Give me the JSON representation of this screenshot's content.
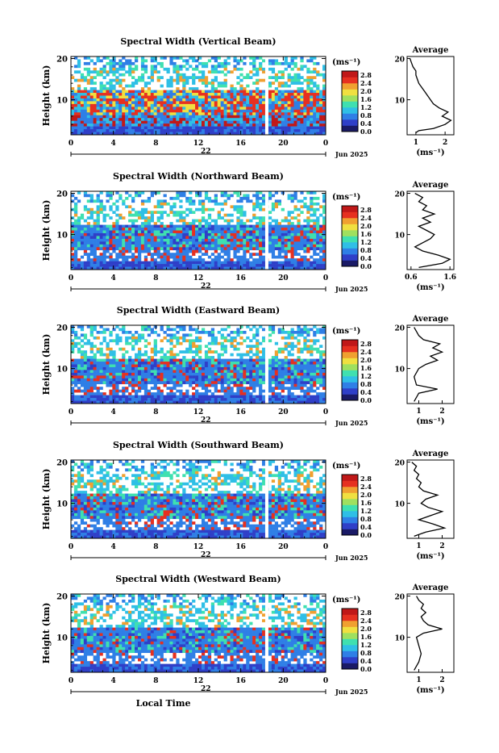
{
  "colors": {
    "stops": [
      "#1a1a66",
      "#2f3fc8",
      "#2f7fe6",
      "#2fbfe6",
      "#3fe0b0",
      "#9fe05f",
      "#f0e040",
      "#f0a030",
      "#e63020",
      "#c01818"
    ],
    "white": "#ffffff"
  },
  "x_axis": {
    "ticks": [
      "0",
      "4",
      "8",
      "12",
      "16",
      "20",
      "0"
    ],
    "date_label": "22",
    "date_suffix": "Jun 2025",
    "xlabel": "Local Time"
  },
  "y_axis": {
    "ylabel": "Height (km)",
    "ticks": [
      "20",
      "10"
    ]
  },
  "colorbar": {
    "unit": "(ms⁻¹)",
    "ticks": [
      "2.8",
      "2.4",
      "2.0",
      "1.6",
      "1.2",
      "0.8",
      "0.4",
      "0.0"
    ]
  },
  "avg_panel": {
    "title": "Average",
    "xlabel": "(ms⁻¹)"
  },
  "chart_data": [
    {
      "type": "heatmap",
      "title": "Spectral Width (Vertical Beam)",
      "xlabel": "",
      "ylabel": "Height (km)",
      "xlim": [
        0,
        24
      ],
      "ylim": [
        1.5,
        20.5
      ],
      "zlim": [
        0.0,
        3.0
      ],
      "average_profile": {
        "xticks": [
          "1",
          "2"
        ],
        "xlim": [
          0.7,
          2.3
        ],
        "points": [
          [
            1.0,
            2
          ],
          [
            1.1,
            2.5
          ],
          [
            1.6,
            3
          ],
          [
            2.0,
            4
          ],
          [
            2.2,
            5
          ],
          [
            1.9,
            6
          ],
          [
            2.1,
            7
          ],
          [
            1.8,
            8
          ],
          [
            1.6,
            9
          ],
          [
            1.5,
            10
          ],
          [
            1.4,
            11
          ],
          [
            1.3,
            12
          ],
          [
            1.2,
            13
          ],
          [
            1.1,
            14
          ],
          [
            1.05,
            15
          ],
          [
            1.0,
            16
          ],
          [
            1.0,
            17
          ],
          [
            0.9,
            18
          ],
          [
            0.85,
            19
          ],
          [
            0.8,
            20
          ]
        ]
      }
    },
    {
      "type": "heatmap",
      "title": "Spectral Width (Northward Beam)",
      "xlabel": "",
      "ylabel": "Height (km)",
      "xlim": [
        0,
        24
      ],
      "ylim": [
        1.5,
        20.5
      ],
      "zlim": [
        0.0,
        3.0
      ],
      "average_profile": {
        "xticks": [
          "0.6",
          "1.6"
        ],
        "xlim": [
          0.5,
          1.7
        ],
        "points": [
          [
            0.8,
            2
          ],
          [
            1.4,
            3
          ],
          [
            1.6,
            4
          ],
          [
            1.3,
            5
          ],
          [
            0.9,
            6
          ],
          [
            0.7,
            7
          ],
          [
            0.9,
            8
          ],
          [
            1.1,
            9
          ],
          [
            1.2,
            10
          ],
          [
            1.0,
            11
          ],
          [
            0.8,
            12
          ],
          [
            1.1,
            13
          ],
          [
            0.9,
            14
          ],
          [
            1.2,
            15
          ],
          [
            0.9,
            16
          ],
          [
            1.0,
            17
          ],
          [
            0.8,
            18
          ],
          [
            0.9,
            19
          ],
          [
            0.7,
            20
          ]
        ]
      }
    },
    {
      "type": "heatmap",
      "title": "Spectral Width (Eastward Beam)",
      "xlabel": "",
      "ylabel": "Height (km)",
      "xlim": [
        0,
        24
      ],
      "ylim": [
        1.5,
        20.5
      ],
      "zlim": [
        0.0,
        3.0
      ],
      "average_profile": {
        "xticks": [
          "1",
          "2"
        ],
        "xlim": [
          0.5,
          2.5
        ],
        "points": [
          [
            0.8,
            2
          ],
          [
            0.9,
            3
          ],
          [
            1.0,
            4
          ],
          [
            1.8,
            5
          ],
          [
            0.9,
            6
          ],
          [
            0.8,
            8
          ],
          [
            1.0,
            10
          ],
          [
            1.3,
            11
          ],
          [
            1.8,
            12
          ],
          [
            1.5,
            13
          ],
          [
            2.0,
            14
          ],
          [
            1.6,
            15
          ],
          [
            1.9,
            16
          ],
          [
            1.2,
            17
          ],
          [
            1.0,
            18
          ],
          [
            0.9,
            19
          ],
          [
            0.8,
            20
          ]
        ]
      }
    },
    {
      "type": "heatmap",
      "title": "Spectral Width (Southward Beam)",
      "xlabel": "",
      "ylabel": "Height (km)",
      "xlim": [
        0,
        24
      ],
      "ylim": [
        1.5,
        20.5
      ],
      "zlim": [
        0.0,
        3.0
      ],
      "average_profile": {
        "xticks": [
          "1",
          "2"
        ],
        "xlim": [
          0.5,
          2.5
        ],
        "points": [
          [
            0.8,
            2
          ],
          [
            1.3,
            3
          ],
          [
            2.1,
            4
          ],
          [
            1.6,
            5
          ],
          [
            1.0,
            6
          ],
          [
            1.5,
            7
          ],
          [
            2.0,
            8
          ],
          [
            1.4,
            9
          ],
          [
            1.1,
            10
          ],
          [
            1.3,
            11
          ],
          [
            1.8,
            12
          ],
          [
            1.2,
            13
          ],
          [
            1.0,
            14
          ],
          [
            1.1,
            15
          ],
          [
            0.9,
            16
          ],
          [
            1.0,
            17
          ],
          [
            0.8,
            18
          ],
          [
            0.9,
            19
          ],
          [
            0.7,
            20
          ]
        ]
      }
    },
    {
      "type": "heatmap",
      "title": "Spectral Width (Westward Beam)",
      "xlabel": "Local Time",
      "ylabel": "Height (km)",
      "xlim": [
        0,
        24
      ],
      "ylim": [
        1.5,
        20.5
      ],
      "zlim": [
        0.0,
        3.0
      ],
      "average_profile": {
        "xticks": [
          "1",
          "2"
        ],
        "xlim": [
          0.5,
          2.5
        ],
        "points": [
          [
            0.8,
            2
          ],
          [
            0.9,
            3
          ],
          [
            1.0,
            4
          ],
          [
            1.1,
            6
          ],
          [
            1.0,
            8
          ],
          [
            0.9,
            10
          ],
          [
            1.2,
            11
          ],
          [
            2.0,
            12
          ],
          [
            1.4,
            13
          ],
          [
            1.2,
            14
          ],
          [
            1.1,
            15
          ],
          [
            1.3,
            16
          ],
          [
            1.1,
            17
          ],
          [
            1.2,
            18
          ],
          [
            1.0,
            19
          ],
          [
            0.9,
            20
          ]
        ]
      }
    }
  ]
}
